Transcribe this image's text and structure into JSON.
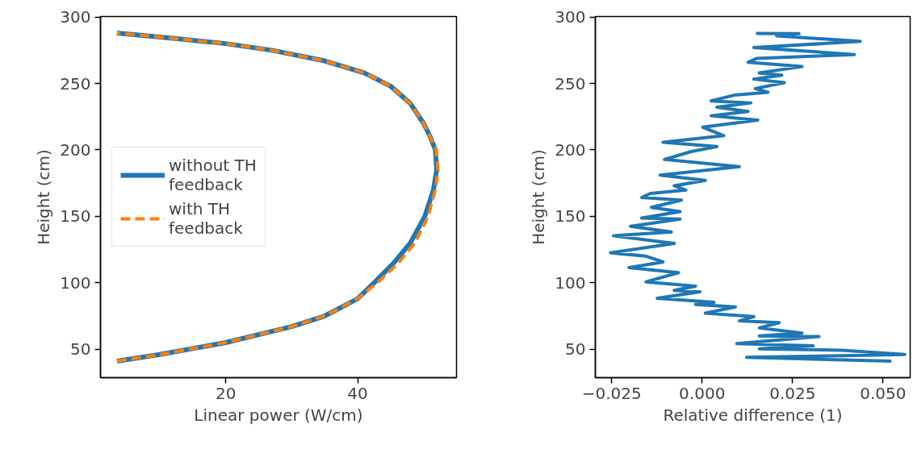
{
  "chart_data": [
    {
      "type": "line",
      "xlabel": "Linear power (W/cm)",
      "ylabel": "Height (cm)",
      "xlim": [
        1.0,
        55.0
      ],
      "ylim": [
        28.6,
        300.4
      ],
      "xticks": [
        20,
        40
      ],
      "yticks": [
        50,
        100,
        150,
        200,
        250,
        300
      ],
      "grid": false,
      "legend": "left",
      "series": [
        {
          "name": "without TH feedback",
          "color": "#1f77b4",
          "line_style": "solid",
          "x": [
            3.5,
            10,
            20,
            30,
            35,
            40,
            42.5,
            45.5,
            48,
            50.2,
            51.5,
            52,
            51.8,
            51,
            50,
            48,
            45,
            41,
            35,
            27,
            20,
            12,
            3.5
          ],
          "values": [
            41,
            46,
            55,
            67,
            75,
            88,
            100,
            115,
            130,
            150,
            170,
            185,
            200,
            210,
            220,
            235,
            248,
            258,
            267,
            275,
            280,
            284,
            288
          ]
        },
        {
          "name": "with TH feedback",
          "color": "#ff7f0e",
          "line_style": "dashed",
          "x": [
            3.5,
            10,
            20,
            30,
            35,
            40,
            43,
            46.2,
            48.7,
            50.7,
            51.8,
            52.2,
            51.9,
            51,
            50,
            48,
            45,
            41,
            35,
            27,
            20,
            12,
            3.5
          ],
          "values": [
            41,
            46,
            55,
            67,
            75,
            88,
            100,
            115,
            130,
            150,
            170,
            185,
            200,
            210,
            220,
            235,
            248,
            258,
            267,
            275,
            280,
            284,
            288
          ]
        }
      ]
    },
    {
      "type": "line",
      "xlabel": "Relative difference (1)",
      "ylabel": "Height (cm)",
      "xlim": [
        -0.0295,
        0.0575
      ],
      "ylim": [
        28.6,
        300.4
      ],
      "xticks": [
        {
          "value": -0.025,
          "label": "−0.025"
        },
        {
          "value": 0,
          "label": "0.000"
        },
        {
          "value": 0.025,
          "label": "0.025"
        },
        {
          "value": 0.05,
          "label": "0.050"
        }
      ],
      "yticks": [
        50,
        100,
        150,
        200,
        250,
        300
      ],
      "grid": false,
      "legend": false,
      "series": [
        {
          "color": "#1f77b4",
          "line_style": "solid",
          "x": [
            0.0149,
            0.0268,
            0.0206,
            0.0437,
            0.0143,
            0.0421,
            0.015,
            0.0127,
            0.0276,
            0.0158,
            0.022,
            0.0143,
            0.0227,
            0.0147,
            0.0182,
            0.0088,
            0.0025,
            0.0135,
            0.0041,
            0.0127,
            0.0025,
            0.0154,
            0.0002,
            0.006,
            -0.0108,
            0.0041,
            -0.003,
            -0.0104,
            0.0103,
            -0.0116,
            0.0009,
            -0.0077,
            -0.0045,
            -0.0143,
            -0.0167,
            -0.0057,
            -0.014,
            -0.0061,
            -0.0167,
            -0.0061,
            -0.0198,
            -0.0085,
            -0.0245,
            -0.0077,
            -0.0253,
            -0.0155,
            -0.0108,
            -0.0202,
            -0.0065,
            -0.0155,
            -0.0018,
            -0.0077,
            -0.0006,
            -0.0124,
            0.0033,
            -0.0018,
            0.0092,
            0.0009,
            0.0143,
            0.0103,
            0.0213,
            0.0158,
            0.0276,
            0.0158,
            0.0323,
            0.0096,
            0.0307,
            0.0158,
            0.0386,
            0.056,
            0.0123,
            0.0523
          ],
          "values": [
            287.7,
            287.5,
            285.8,
            281.7,
            277,
            271.8,
            268.8,
            266,
            262.8,
            258,
            256.3,
            253.3,
            250.7,
            246.2,
            243.4,
            241.2,
            236.9,
            235.4,
            232.2,
            229,
            225.7,
            222.5,
            217.1,
            210.7,
            205.7,
            202.5,
            198.8,
            192.8,
            187.4,
            181,
            177.1,
            173,
            169.8,
            167.2,
            164.2,
            162.2,
            156.8,
            153.6,
            148.7,
            147.9,
            142.5,
            138.2,
            135.4,
            129.6,
            122.6,
            120,
            115.7,
            111.4,
            107.6,
            100.7,
            97.5,
            94.3,
            93.2,
            88.3,
            85.3,
            83.6,
            81.8,
            77.1,
            74.5,
            71.3,
            70,
            66,
            62.1,
            60,
            59.5,
            54.2,
            52.5,
            50.3,
            49.3,
            46,
            43.9,
            41.1
          ]
        }
      ]
    }
  ]
}
